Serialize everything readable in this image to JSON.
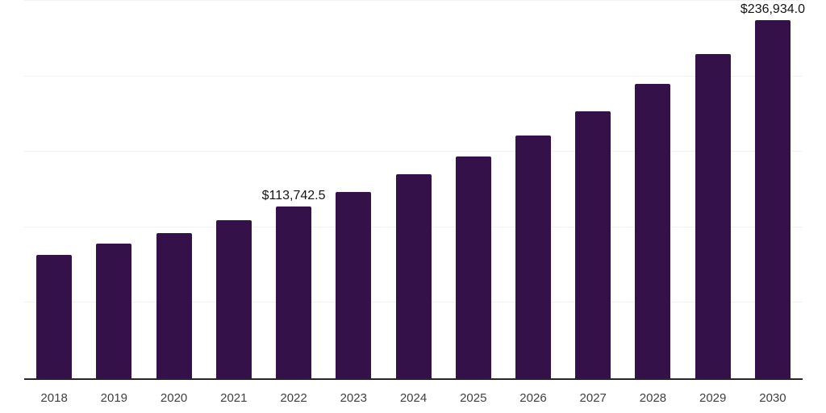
{
  "chart_data": {
    "type": "bar",
    "title": "",
    "xlabel": "",
    "ylabel": "",
    "categories": [
      "2018",
      "2019",
      "2020",
      "2021",
      "2022",
      "2023",
      "2024",
      "2025",
      "2026",
      "2027",
      "2028",
      "2029",
      "2030"
    ],
    "values": [
      81800,
      89300,
      96000,
      104500,
      113742.5,
      123500,
      135000,
      147000,
      161000,
      177000,
      195000,
      214700,
      236934
    ],
    "value_labels": {
      "2022": "$113,742.5",
      "2030": "$236,934.0"
    },
    "ylim": [
      0,
      250000
    ],
    "gridline_values": [
      50000,
      100000,
      150000,
      200000,
      250000
    ],
    "grid": "horizontal only, no y-axis tick labels",
    "legend": "none",
    "colors": {
      "bar": "#351149",
      "axis": "#262626",
      "gridline": "#f2f2f3",
      "tick_label": "#404040",
      "value_label": "#141414",
      "background": "#ffffff"
    }
  }
}
